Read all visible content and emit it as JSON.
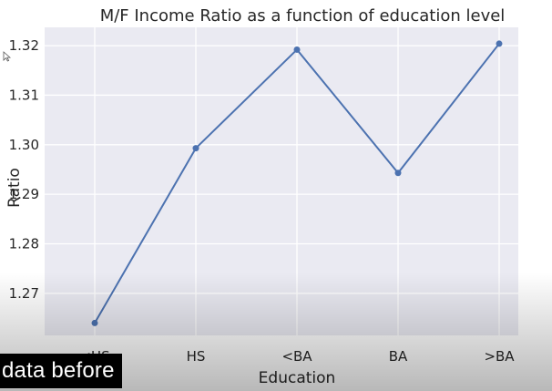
{
  "chart_data": {
    "type": "line",
    "title": "M/F Income Ratio as a function of education level",
    "xlabel": "Education",
    "ylabel": "Ratio",
    "categories": [
      "<HS",
      "HS",
      "<BA",
      "BA",
      ">BA"
    ],
    "series": [
      {
        "values": [
          1.264,
          1.2993,
          1.3192,
          1.2943,
          1.3204
        ]
      }
    ],
    "yticks": [
      "1.27",
      "1.28",
      "1.29",
      "1.30",
      "1.31",
      "1.32"
    ],
    "ylim": [
      1.2615,
      1.3237
    ],
    "grid": true,
    "colors": {
      "background": "#eaeaf2",
      "grid": "#ffffff",
      "line": "#4c72b0"
    }
  },
  "overlay": {
    "caption": "data before"
  }
}
